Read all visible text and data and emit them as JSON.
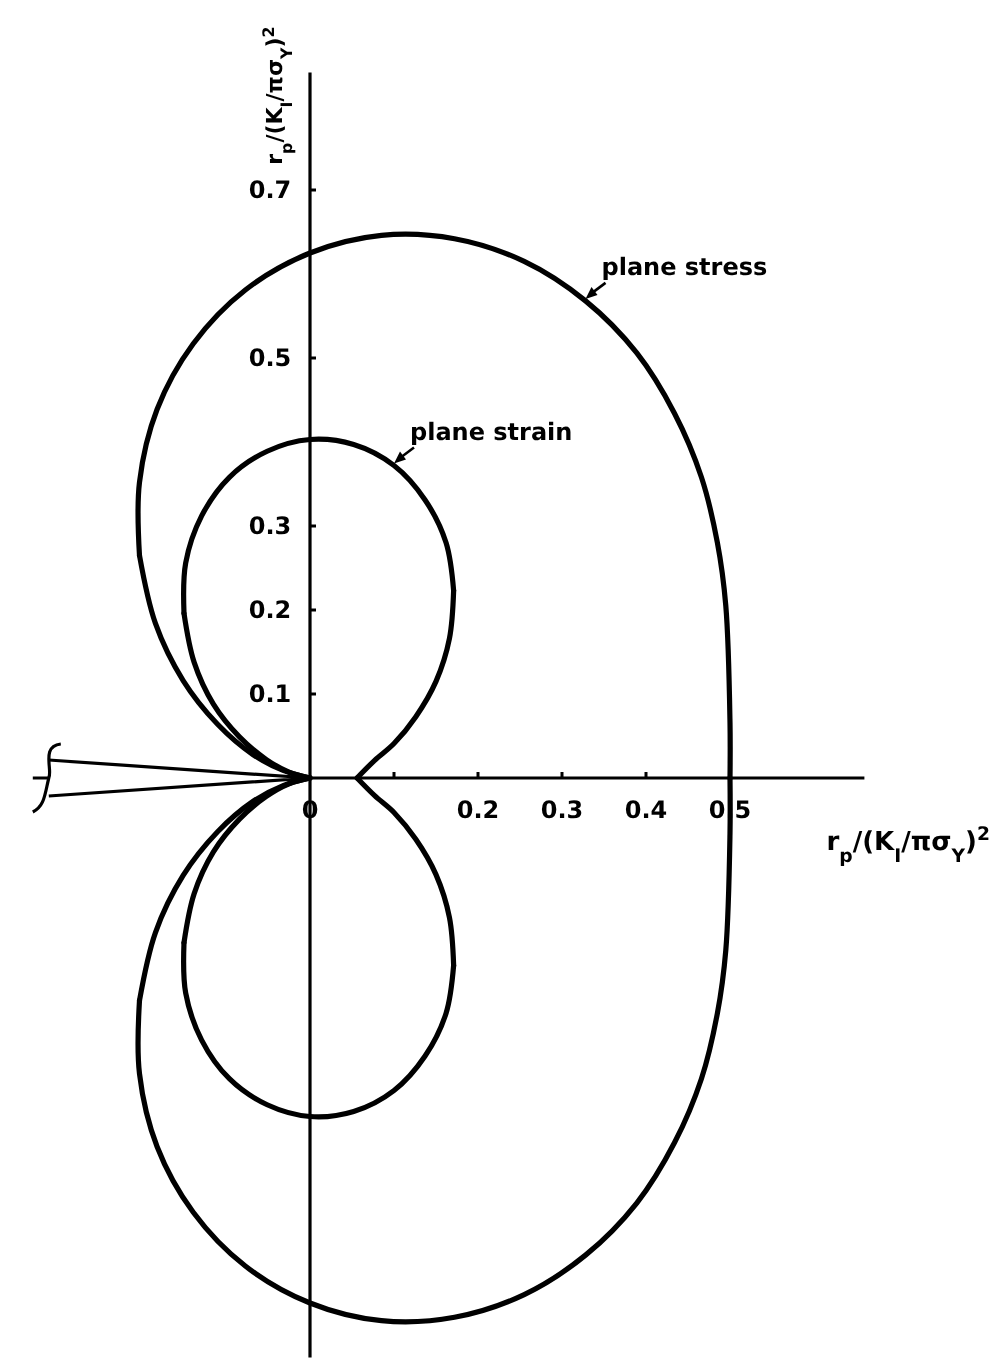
{
  "chart_data": {
    "type": "line",
    "xlabel": "r$_{p}$/(K$_{I}$/πσ$_{Y}$)$^{2}$",
    "ylabel": "r$_{p}$/(K$_{I}$/πσ$_{Y}$)$^{2}$",
    "xlim": [
      -0.33,
      0.66
    ],
    "ylim": [
      -0.69,
      0.84
    ],
    "xticks": [
      0,
      {
        "value": 0.1,
        "label": null
      },
      0.2,
      0.3,
      0.4,
      0.5
    ],
    "yticks": [
      0.1,
      0.2,
      0.3,
      0.5,
      0.7
    ],
    "grid": false,
    "legend": false,
    "marker": "none",
    "line_style": "solid",
    "series": [
      {
        "name": "plane stress",
        "color": "#000000",
        "x": [
          0.5,
          0.5,
          0.495,
          0.485,
          0.466,
          0.434,
          0.389,
          0.328,
          0.255,
          0.172,
          0.085,
          0,
          -0.077,
          -0.139,
          -0.182,
          -0.203,
          -0.203
        ],
        "values": [
          0,
          0.066,
          0.205,
          0.28,
          0.358,
          0.434,
          0.506,
          0.568,
          0.615,
          0.642,
          0.646,
          0.625,
          0.581,
          0.517,
          0.439,
          0.352,
          0.265
        ]
      },
      {
        "color": "#000000",
        "x": [
          -0.203,
          -0.184,
          -0.151,
          -0.11,
          -0.068,
          -0.032,
          0
        ],
        "values": [
          0.265,
          0.184,
          0.116,
          0.064,
          0.028,
          0.009,
          0
        ]
      },
      {
        "color": "#000000",
        "x": [
          0,
          -0.032,
          -0.068,
          -0.11,
          -0.151,
          -0.184,
          -0.203
        ],
        "values": [
          0,
          -0.009,
          -0.028,
          -0.064,
          -0.116,
          -0.184,
          -0.265
        ]
      },
      {
        "color": "#000000",
        "x": [
          -0.203,
          -0.203,
          -0.182,
          -0.139,
          -0.077,
          0,
          0.085,
          0.172,
          0.255,
          0.328,
          0.389,
          0.434,
          0.466,
          0.485,
          0.495,
          0.5,
          0.5
        ],
        "values": [
          -0.265,
          -0.352,
          -0.439,
          -0.517,
          -0.581,
          -0.625,
          -0.646,
          -0.642,
          -0.615,
          -0.568,
          -0.506,
          -0.434,
          -0.358,
          -0.28,
          -0.205,
          -0.066,
          0
        ]
      },
      {
        "color": "#000000",
        "x": [
          0.056,
          0.077,
          0.1,
          0.126,
          0.15,
          0.166,
          0.171
        ],
        "values": [
          0,
          0.021,
          0.041,
          0.073,
          0.115,
          0.166,
          0.223
        ]
      },
      {
        "name": "plane strain",
        "color": "#000000",
        "x": [
          0.171,
          0.162,
          0.137,
          0.1,
          0.052,
          0,
          -0.051,
          -0.096,
          -0.129,
          -0.148,
          -0.15
        ],
        "values": [
          0.223,
          0.28,
          0.331,
          0.372,
          0.397,
          0.403,
          0.389,
          0.358,
          0.312,
          0.256,
          0.196
        ]
      },
      {
        "color": "#000000",
        "x": [
          -0.15,
          -0.138,
          -0.115,
          -0.084,
          -0.052,
          -0.025,
          0
        ],
        "values": [
          0.196,
          0.138,
          0.088,
          0.049,
          0.022,
          0.007,
          0
        ]
      },
      {
        "color": "#000000",
        "x": [
          0,
          -0.025,
          -0.052,
          -0.084,
          -0.115,
          -0.138,
          -0.15
        ],
        "values": [
          0,
          -0.007,
          -0.022,
          -0.049,
          -0.088,
          -0.138,
          -0.196
        ]
      },
      {
        "color": "#000000",
        "x": [
          -0.15,
          -0.148,
          -0.129,
          -0.096,
          -0.051,
          0,
          0.052,
          0.1,
          0.137,
          0.162,
          0.171
        ],
        "values": [
          -0.196,
          -0.256,
          -0.312,
          -0.358,
          -0.389,
          -0.403,
          -0.397,
          -0.372,
          -0.331,
          -0.28,
          -0.223
        ]
      },
      {
        "color": "#000000",
        "x": [
          0.171,
          0.166,
          0.15,
          0.126,
          0.1,
          0.077,
          0.056
        ],
        "values": [
          -0.223,
          -0.166,
          -0.115,
          -0.073,
          -0.041,
          -0.021,
          0
        ]
      }
    ]
  }
}
